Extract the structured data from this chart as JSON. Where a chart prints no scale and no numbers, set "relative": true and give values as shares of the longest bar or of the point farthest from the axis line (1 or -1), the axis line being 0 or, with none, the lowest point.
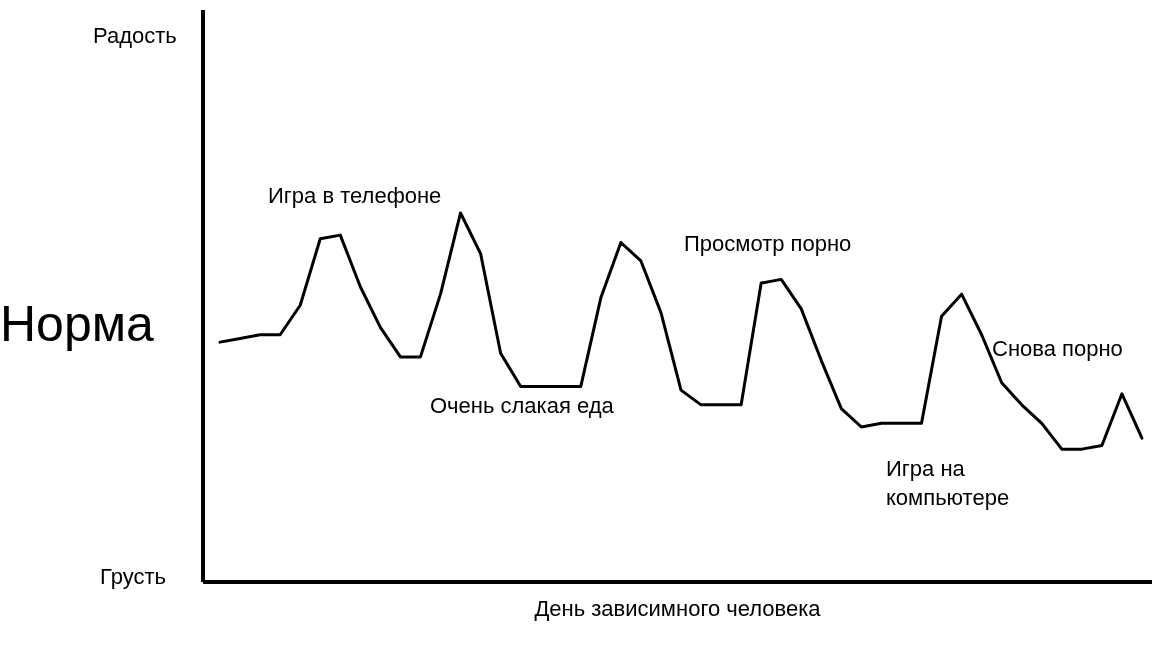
{
  "chart_data": {
    "type": "line",
    "relative": true,
    "xlabel": "День зависимного человека",
    "color": "#000000",
    "marker": "none",
    "line_style": "solid",
    "categories": [
      null,
      null,
      null,
      null,
      null,
      null,
      null,
      null,
      null,
      null,
      null,
      null,
      null,
      null,
      null,
      null,
      null,
      null,
      null,
      null,
      null,
      null,
      null,
      null,
      null,
      null,
      null,
      null,
      null,
      null,
      null,
      null,
      null,
      null,
      null,
      null,
      null,
      null,
      null,
      null,
      null,
      null,
      null,
      null,
      null,
      null,
      null
    ],
    "values": [
      0.65,
      0.66,
      0.67,
      0.67,
      0.75,
      0.93,
      0.94,
      0.8,
      0.69,
      0.61,
      0.61,
      0.78,
      1.0,
      0.89,
      0.62,
      0.53,
      0.53,
      0.53,
      0.53,
      0.77,
      0.92,
      0.87,
      0.73,
      0.52,
      0.48,
      0.48,
      0.48,
      0.81,
      0.82,
      0.74,
      0.6,
      0.47,
      0.42,
      0.43,
      0.43,
      0.43,
      0.72,
      0.78,
      0.67,
      0.54,
      0.48,
      0.43,
      0.36,
      0.36,
      0.37,
      0.51,
      0.39
    ],
    "annotations": [
      "Радость",
      "Норма",
      "Грусть",
      "Игра в телефоне",
      "Очень слакая еда",
      "Просмотр порно",
      "Игра на компьютере",
      "Снова порно"
    ]
  }
}
